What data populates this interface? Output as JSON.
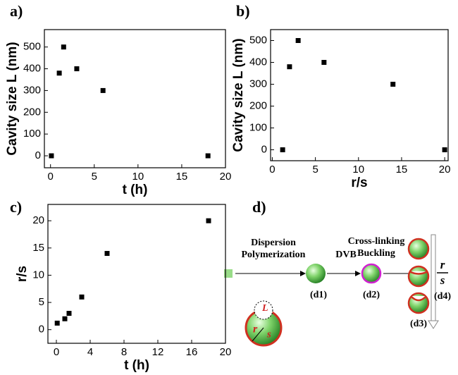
{
  "chart_data": [
    {
      "type": "scatter",
      "panel_label": "a)",
      "x_label": "t (h)",
      "y_label": "Cavity size L (nm)",
      "x": [
        0.1,
        1,
        1.5,
        3,
        6,
        18
      ],
      "values": [
        0,
        380,
        500,
        400,
        300,
        0
      ],
      "color": "#000000",
      "xlim": [
        -0.7,
        20
      ],
      "ylim": [
        -55,
        580
      ],
      "xticks": [
        0,
        5,
        10,
        15,
        20
      ],
      "yticks": [
        0,
        100,
        200,
        300,
        400,
        500
      ]
    },
    {
      "type": "scatter",
      "panel_label": "b)",
      "x_label": "r/s",
      "y_label": "Cavity size L (nm)",
      "x": [
        1.2,
        2,
        3,
        6,
        14,
        20
      ],
      "values": [
        0,
        380,
        500,
        400,
        300,
        0
      ],
      "color": "#000000",
      "xlim": [
        -0.2,
        20.4
      ],
      "ylim": [
        -50,
        550
      ],
      "xticks": [
        0,
        5,
        10,
        15,
        20
      ],
      "yticks": [
        0,
        100,
        200,
        300,
        400,
        500
      ]
    },
    {
      "type": "scatter",
      "panel_label": "c)",
      "x_label": "t (h)",
      "y_label": "r/s",
      "x": [
        0.1,
        1,
        1.5,
        3,
        6,
        18
      ],
      "values": [
        1.2,
        2,
        3,
        6,
        14,
        20
      ],
      "color": "#000000",
      "xlim": [
        -1,
        20
      ],
      "ylim": [
        -2.5,
        23
      ],
      "xticks": [
        0,
        4,
        8,
        12,
        16,
        20
      ],
      "yticks": [
        0,
        5,
        10,
        15,
        20
      ]
    }
  ],
  "diagram": {
    "panel_label": "d)",
    "step1": [
      "Dispersion",
      "Polymerization"
    ],
    "step2": "DVB",
    "step3": [
      "Cross-linking",
      "Buckling"
    ],
    "labels": [
      "(d1)",
      "(d2)",
      "(d3)",
      "(d4)"
    ],
    "ratio_top": "r",
    "ratio_bottom": "s",
    "inset": [
      "L",
      "r",
      "s"
    ]
  }
}
